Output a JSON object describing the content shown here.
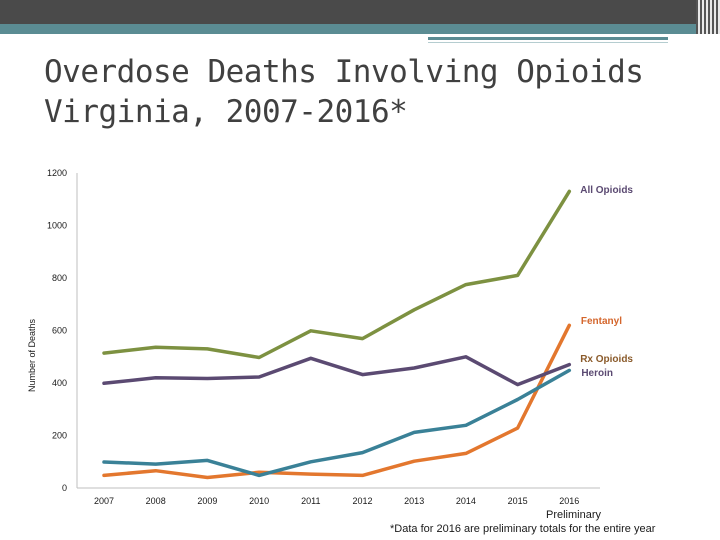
{
  "slide": {
    "title_line1": "Overdose Deaths Involving Opioids",
    "title_line2": "Virginia, 2007-2016*",
    "footnote_preliminary": "Preliminary",
    "footnote_text": "*Data for 2016  are preliminary totals for the entire year"
  },
  "chart_data": {
    "type": "line",
    "title": "Overdose Deaths Involving Opioids Virginia, 2007-2016*",
    "xlabel": "",
    "ylabel": "Number of Deaths",
    "categories": [
      "2007",
      "2008",
      "2009",
      "2010",
      "2011",
      "2012",
      "2013",
      "2014",
      "2015",
      "2016"
    ],
    "y_ticks": [
      "0",
      "200",
      "400",
      "600",
      "800",
      "1000",
      "1200"
    ],
    "ylim": [
      0,
      1200
    ],
    "grid": false,
    "series": [
      {
        "name": "All Opioids",
        "color": "#7d9141",
        "values": [
          514,
          536,
          530,
          497,
          599,
          569,
          679,
          775,
          810,
          1130
        ]
      },
      {
        "name": "Fentanyl",
        "color": "#e3772e",
        "values": [
          48,
          66,
          40,
          60,
          53,
          48,
          102,
          132,
          228,
          620
        ]
      },
      {
        "name": "Rx Opioids",
        "color": "#5b4a72",
        "values": [
          399,
          420,
          417,
          423,
          494,
          432,
          457,
          500,
          394,
          470
        ]
      },
      {
        "name": "Heroin",
        "color": "#3a8197",
        "values": [
          99,
          91,
          105,
          48,
          100,
          135,
          212,
          239,
          337,
          448
        ]
      }
    ],
    "legend_labels": [
      {
        "text": "All Opioids",
        "color": "#5b4a72"
      },
      {
        "text": "Fentanyl",
        "color": "#d4662c"
      },
      {
        "text": "Rx Opioids",
        "color": "#8a5a2a"
      },
      {
        "text": "Heroin",
        "color": "#5b4a72"
      }
    ]
  }
}
